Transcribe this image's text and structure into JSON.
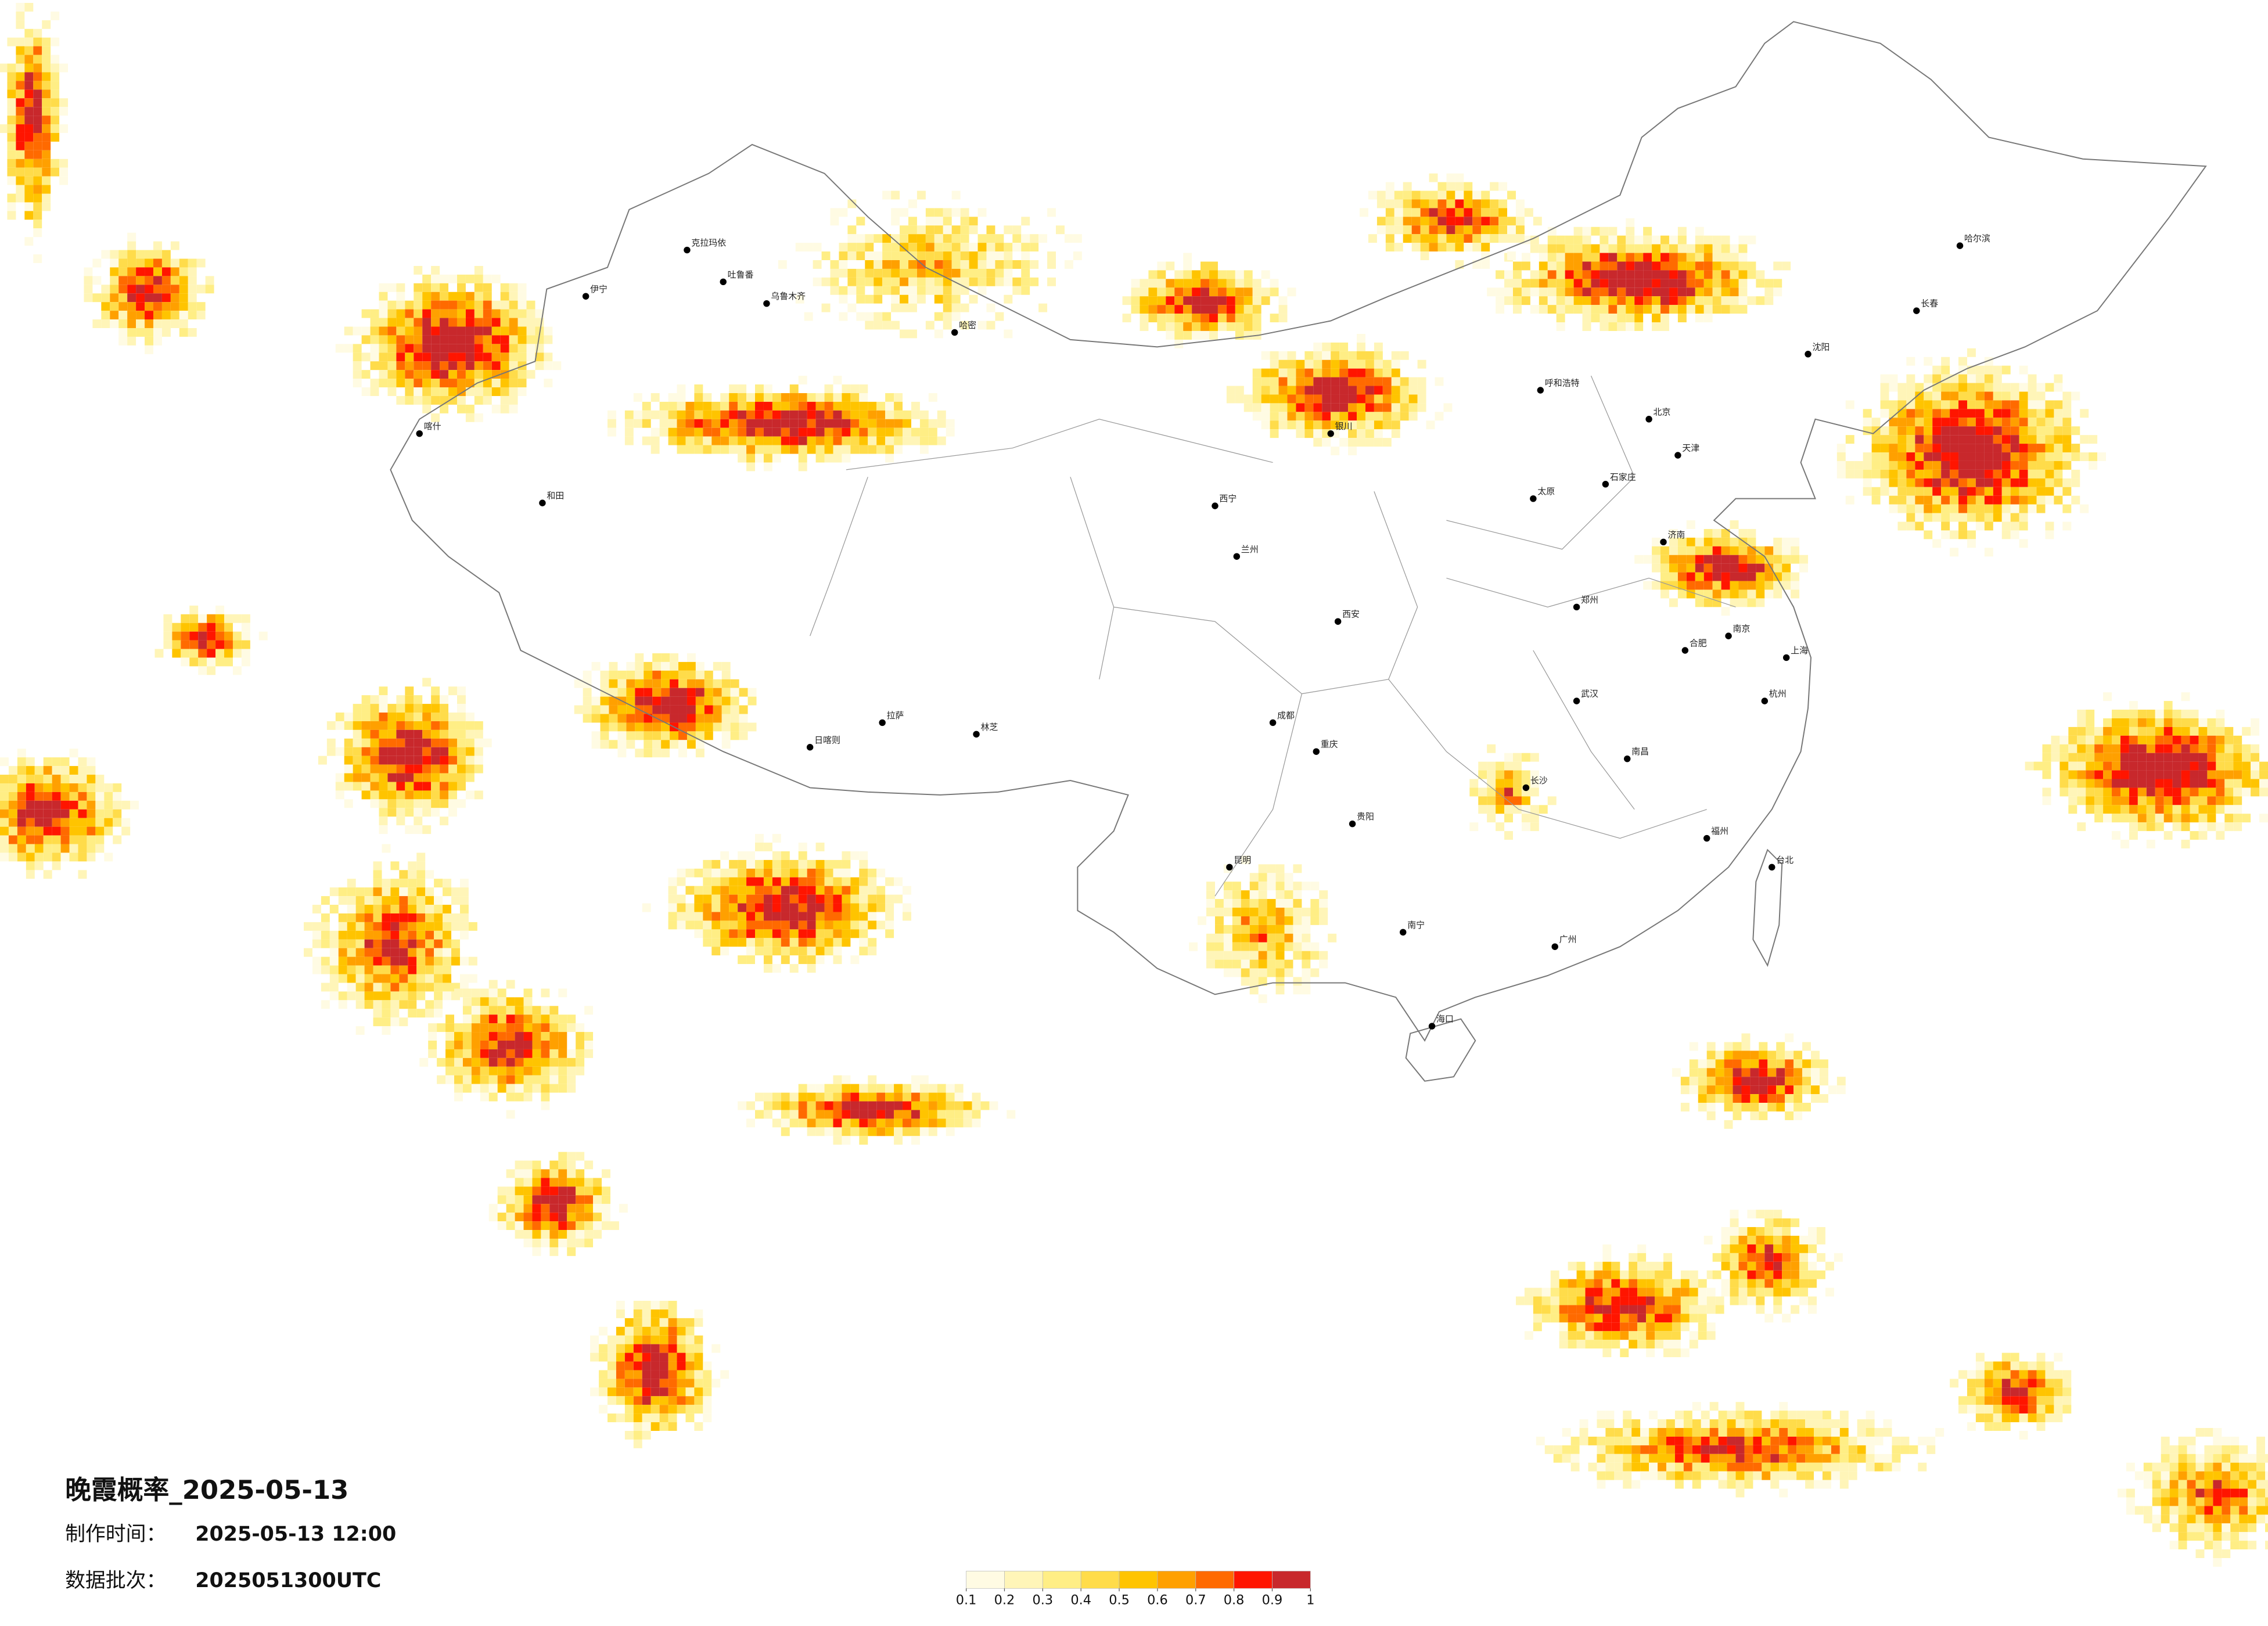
{
  "title": "晚霞概率_2025-05-13",
  "made_time_label": "制作时间：",
  "made_time": "2025-05-13 12:00",
  "batch_label": "数据批次：",
  "batch": "2025051300UTC",
  "legend": {
    "ticks": [
      0.1,
      0.2,
      0.3,
      0.4,
      0.5,
      0.6,
      0.7,
      0.8,
      0.9,
      1
    ],
    "colors": [
      "#fffbe3",
      "#fff5b8",
      "#ffee85",
      "#ffdc4a",
      "#ffc400",
      "#ffa000",
      "#ff6a00",
      "#ff1500",
      "#c8282c"
    ]
  },
  "cities": [
    "克拉玛依",
    "乌鲁木齐",
    "吐鲁番",
    "哈密",
    "伊宁",
    "喀什",
    "和田",
    "拉萨",
    "日喀则",
    "林芝",
    "北京",
    "天津",
    "石家庄",
    "太原",
    "呼和浩特",
    "银川",
    "西宁",
    "兰州",
    "西安",
    "郑州",
    "济南",
    "南京",
    "上海",
    "杭州",
    "合肥",
    "武汉",
    "长沙",
    "南昌",
    "福州",
    "广州",
    "南宁",
    "贵阳",
    "昆明",
    "成都",
    "重庆",
    "沈阳",
    "长春",
    "哈尔滨",
    "海口",
    "台北"
  ]
}
